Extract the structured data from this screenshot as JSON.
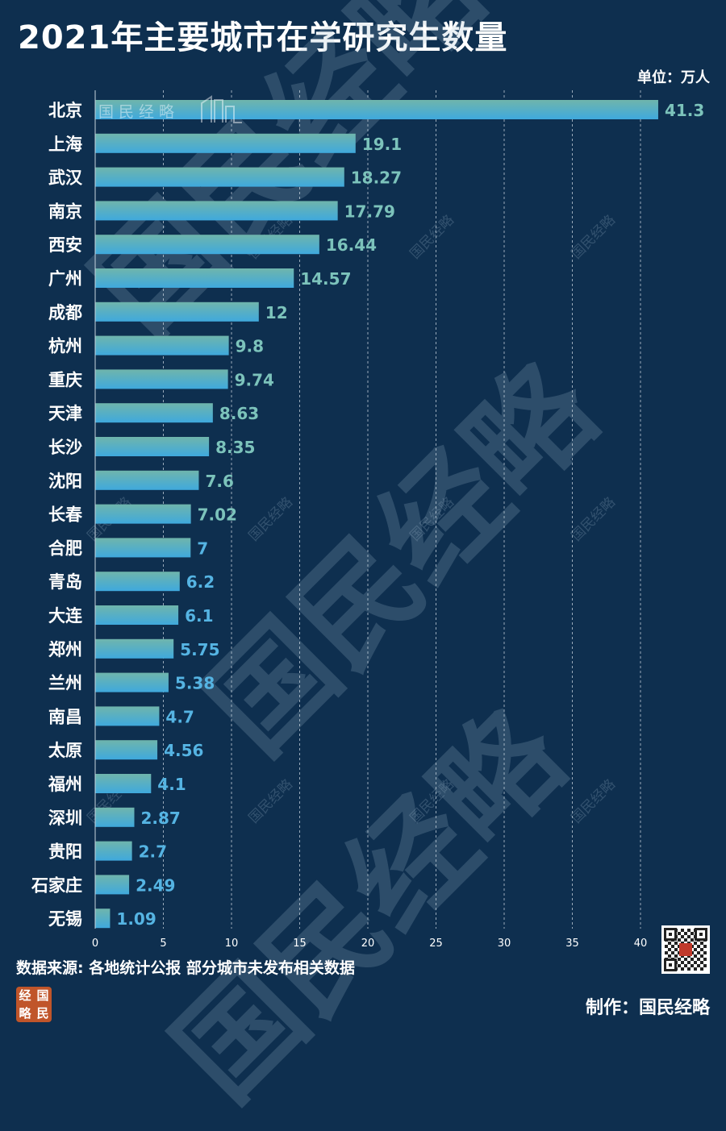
{
  "title": "2021年主要城市在学研究生数量",
  "unit_label": "单位：万人",
  "source": "数据来源: 各地统计公报 部分城市未发布相关数据",
  "maker": "制作：国民经略",
  "logo_chars": [
    "经",
    "国",
    "略",
    "民"
  ],
  "watermark_text": "国民经略",
  "colors": {
    "background": "#0e2f4f",
    "bar_top": "#6fb5ac",
    "bar_bottom": "#3fa9dd",
    "grid": "#c8d4de"
  },
  "chart_data": {
    "type": "bar",
    "orientation": "horizontal",
    "categories": [
      "北京",
      "上海",
      "武汉",
      "南京",
      "西安",
      "广州",
      "成都",
      "杭州",
      "重庆",
      "天津",
      "长沙",
      "沈阳",
      "长春",
      "合肥",
      "青岛",
      "大连",
      "郑州",
      "兰州",
      "南昌",
      "太原",
      "福州",
      "深圳",
      "贵阳",
      "石家庄",
      "无锡"
    ],
    "values": [
      41.3,
      19.1,
      18.27,
      17.79,
      16.44,
      14.57,
      12,
      9.8,
      9.74,
      8.63,
      8.35,
      7.6,
      7.02,
      7,
      6.2,
      6.1,
      5.75,
      5.38,
      4.7,
      4.56,
      4.1,
      2.87,
      2.7,
      2.49,
      1.09
    ],
    "value_labels": [
      "41.3",
      "19.1",
      "18.27",
      "17.79",
      "16.44",
      "14.57",
      "12",
      "9.8",
      "9.74",
      "8.63",
      "8.35",
      "7.6",
      "7.02",
      "7",
      "6.2",
      "6.1",
      "5.75",
      "5.38",
      "4.7",
      "4.56",
      "4.1",
      "2.87",
      "2.7",
      "2.49",
      "1.09"
    ],
    "xlim": [
      0,
      42
    ],
    "xticks": [
      0,
      5,
      10,
      15,
      20,
      25,
      30,
      35,
      40
    ],
    "grid": true,
    "grid_style": "dashed-vertical"
  }
}
